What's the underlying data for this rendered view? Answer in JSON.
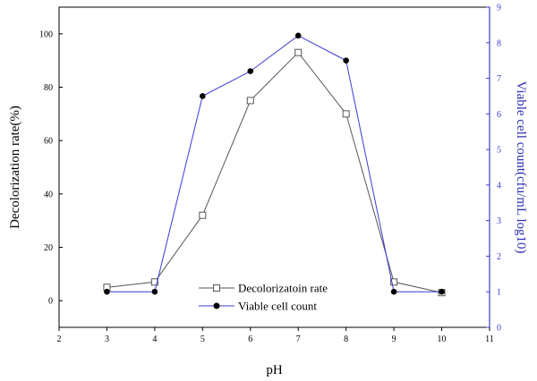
{
  "chart_data": {
    "type": "line",
    "xlabel": "pH",
    "ylabel_left": "Decolorization rate(%)",
    "ylabel_right": "Viable cell count(cfu/mL log10)",
    "xlim": [
      2,
      11
    ],
    "xticks": [
      2,
      3,
      4,
      5,
      6,
      7,
      8,
      9,
      10,
      11
    ],
    "ylim_left": [
      -10,
      110
    ],
    "yticks_left": [
      0,
      20,
      40,
      60,
      80,
      100
    ],
    "ylim_right": [
      0,
      9
    ],
    "yticks_right": [
      0,
      1,
      2,
      3,
      4,
      5,
      6,
      7,
      8,
      9
    ],
    "grid": false,
    "legend_position": "bottom-center",
    "x": [
      3,
      4,
      5,
      6,
      7,
      8,
      9,
      10
    ],
    "series": [
      {
        "name": "Decolorizatoin rate",
        "axis": "left",
        "marker": "open-square",
        "color": "#555555",
        "values": [
          5,
          7,
          32,
          75,
          93,
          70,
          7,
          3
        ]
      },
      {
        "name": "Viable cell count",
        "axis": "right",
        "marker": "filled-circle",
        "color": "#3b3bd4",
        "values": [
          1.0,
          1.0,
          6.5,
          7.2,
          8.2,
          7.5,
          1.0,
          1.0
        ]
      }
    ]
  }
}
